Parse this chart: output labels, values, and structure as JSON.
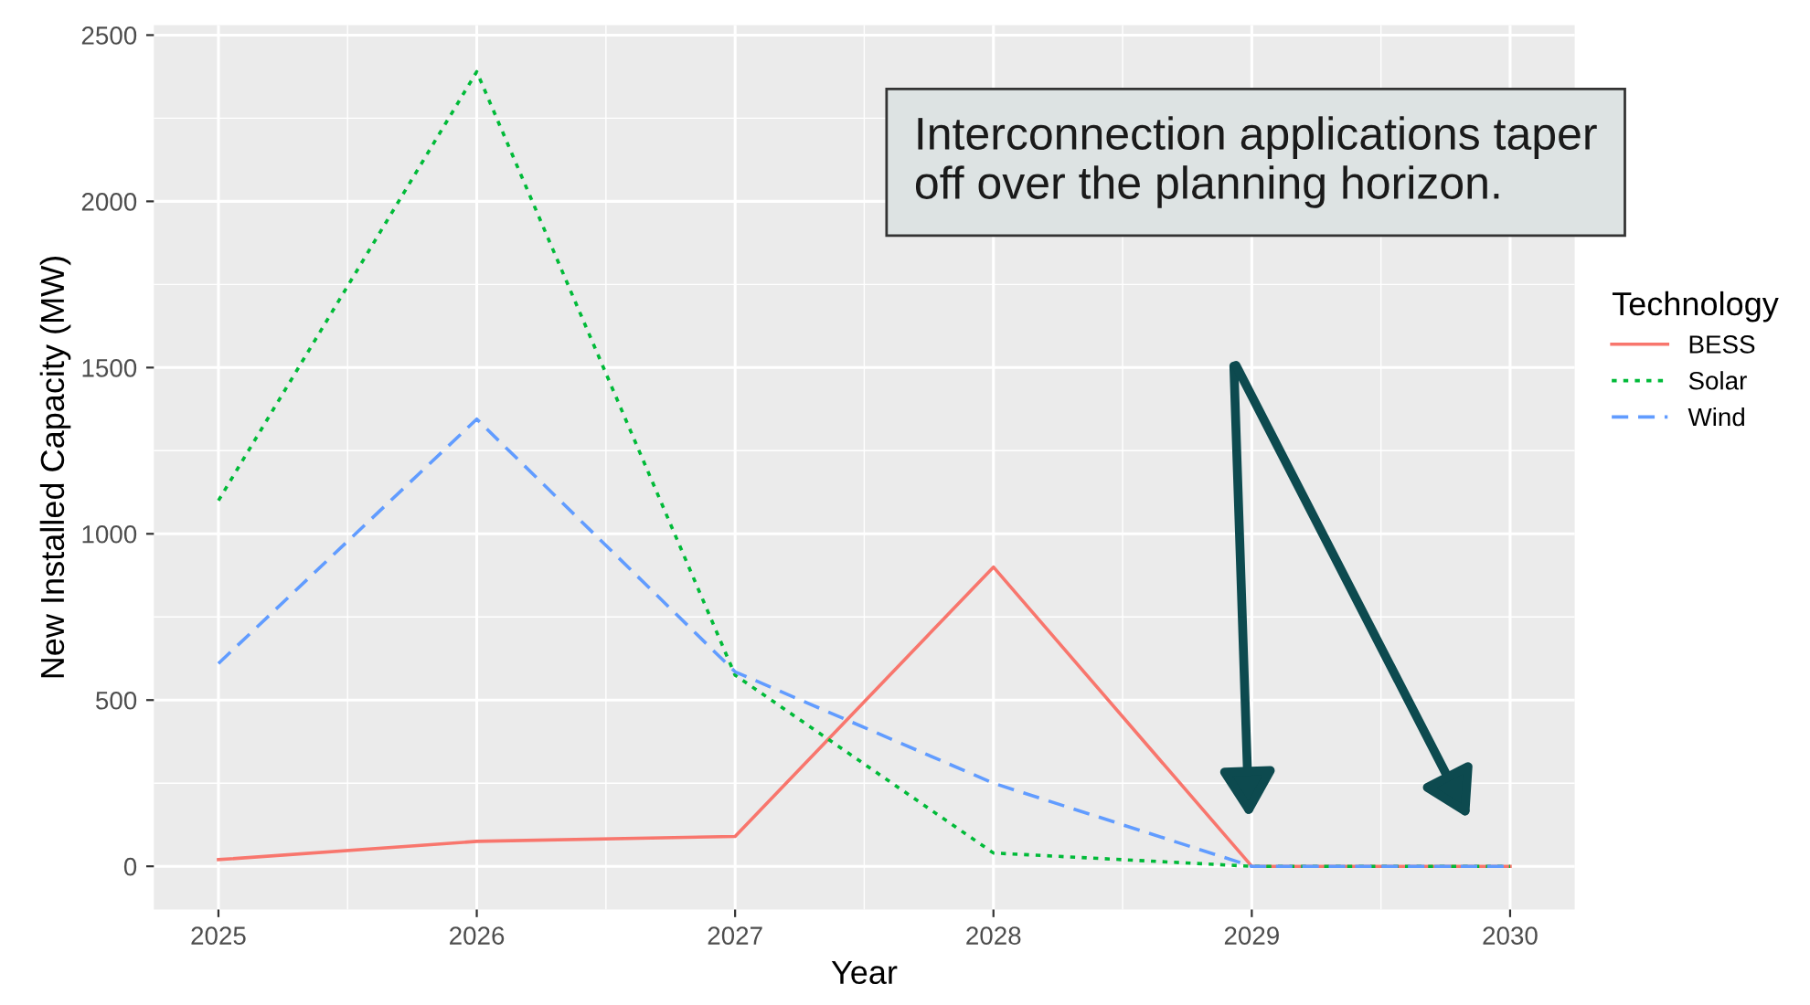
{
  "chart_data": {
    "type": "line",
    "xlabel": "Year",
    "ylabel": "New Installed Capacity (MW)",
    "legend_title": "Technology",
    "x": [
      2025,
      2026,
      2027,
      2028,
      2029,
      2030
    ],
    "series": [
      {
        "name": "BESS",
        "color": "#f8766d",
        "line_style": "solid",
        "values": [
          20,
          75,
          90,
          900,
          0,
          0
        ]
      },
      {
        "name": "Solar",
        "color": "#00ba38",
        "line_style": "dotted",
        "values": [
          1100,
          2390,
          575,
          40,
          0,
          0
        ]
      },
      {
        "name": "Wind",
        "color": "#619cff",
        "line_style": "dashed",
        "values": [
          610,
          1345,
          585,
          250,
          0,
          0
        ]
      }
    ],
    "xlim": [
      2024.75,
      2030.25
    ],
    "ylim": [
      -130,
      2530
    ],
    "xticks": [
      2025,
      2026,
      2027,
      2028,
      2029,
      2030
    ],
    "yticks": [
      0,
      500,
      1000,
      1500,
      2000,
      2500
    ],
    "grid": true,
    "legend": "right",
    "marker": "none",
    "annotations": [
      "Interconnection applications taper off over the planning horizon."
    ]
  }
}
